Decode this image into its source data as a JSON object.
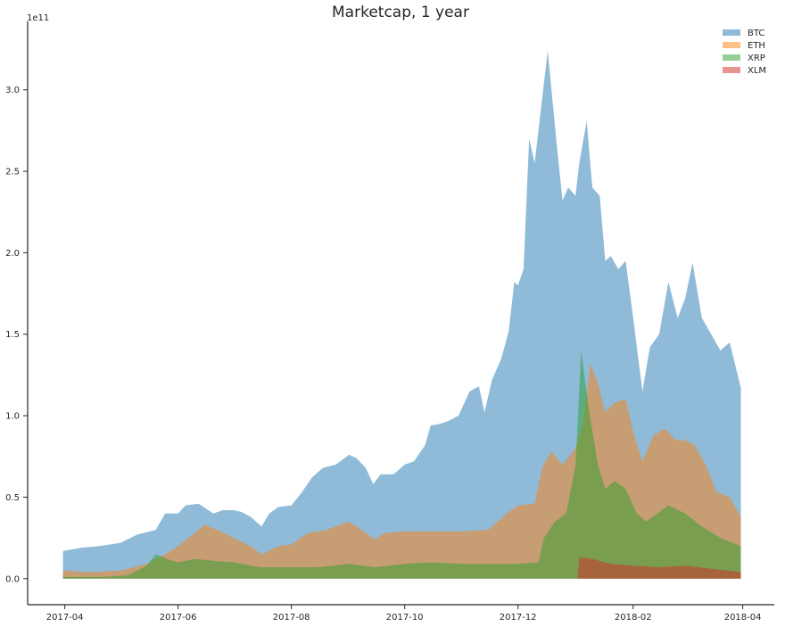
{
  "chart_data": {
    "type": "area",
    "title": "Marketcap, 1 year",
    "xlabel": "",
    "ylabel": "",
    "y_offset_label": "1e11",
    "ylim": [
      -0.16,
      3.42
    ],
    "yticks": [
      0.0,
      0.5,
      1.0,
      1.5,
      2.0,
      2.5,
      3.0
    ],
    "ytick_labels": [
      "0.0",
      "0.5",
      "1.0",
      "1.5",
      "2.0",
      "2.5",
      "3.0"
    ],
    "xlim": [
      "2017-03-12",
      "2018-04-18"
    ],
    "xticks": [
      "2017-04-01",
      "2017-06-01",
      "2017-08-01",
      "2017-10-01",
      "2017-12-01",
      "2018-02-01",
      "2018-04-01"
    ],
    "xtick_labels": [
      "2017-04",
      "2017-06",
      "2017-08",
      "2017-10",
      "2017-12",
      "2018-02",
      "2018-04"
    ],
    "grid": false,
    "stacked": false,
    "legend_position": "top-right",
    "colors": {
      "BTC": "#1f77b4",
      "ETH": "#ff7f0e",
      "XRP": "#2ca02c",
      "XLM": "#d62728"
    },
    "series": [
      {
        "name": "BTC",
        "points": [
          [
            "2017-03-31",
            0.17
          ],
          [
            "2017-04-10",
            0.19
          ],
          [
            "2017-04-20",
            0.2
          ],
          [
            "2017-05-01",
            0.22
          ],
          [
            "2017-05-10",
            0.27
          ],
          [
            "2017-05-20",
            0.3
          ],
          [
            "2017-05-25",
            0.4
          ],
          [
            "2017-06-01",
            0.4
          ],
          [
            "2017-06-05",
            0.45
          ],
          [
            "2017-06-12",
            0.46
          ],
          [
            "2017-06-20",
            0.4
          ],
          [
            "2017-06-25",
            0.42
          ],
          [
            "2017-07-01",
            0.42
          ],
          [
            "2017-07-05",
            0.41
          ],
          [
            "2017-07-10",
            0.38
          ],
          [
            "2017-07-16",
            0.32
          ],
          [
            "2017-07-20",
            0.4
          ],
          [
            "2017-07-25",
            0.44
          ],
          [
            "2017-08-01",
            0.45
          ],
          [
            "2017-08-06",
            0.52
          ],
          [
            "2017-08-12",
            0.62
          ],
          [
            "2017-08-18",
            0.68
          ],
          [
            "2017-08-25",
            0.7
          ],
          [
            "2017-09-01",
            0.76
          ],
          [
            "2017-09-05",
            0.74
          ],
          [
            "2017-09-10",
            0.68
          ],
          [
            "2017-09-14",
            0.58
          ],
          [
            "2017-09-18",
            0.64
          ],
          [
            "2017-09-25",
            0.64
          ],
          [
            "2017-10-01",
            0.7
          ],
          [
            "2017-10-06",
            0.72
          ],
          [
            "2017-10-12",
            0.82
          ],
          [
            "2017-10-15",
            0.94
          ],
          [
            "2017-10-20",
            0.95
          ],
          [
            "2017-10-25",
            0.97
          ],
          [
            "2017-10-30",
            1.0
          ],
          [
            "2017-11-05",
            1.15
          ],
          [
            "2017-11-10",
            1.18
          ],
          [
            "2017-11-13",
            1.02
          ],
          [
            "2017-11-17",
            1.22
          ],
          [
            "2017-11-22",
            1.35
          ],
          [
            "2017-11-26",
            1.52
          ],
          [
            "2017-11-29",
            1.82
          ],
          [
            "2017-12-01",
            1.8
          ],
          [
            "2017-12-04",
            1.9
          ],
          [
            "2017-12-07",
            2.7
          ],
          [
            "2017-12-10",
            2.55
          ],
          [
            "2017-12-13",
            2.85
          ],
          [
            "2017-12-17",
            3.24
          ],
          [
            "2017-12-22",
            2.65
          ],
          [
            "2017-12-25",
            2.32
          ],
          [
            "2017-12-28",
            2.4
          ],
          [
            "2018-01-01",
            2.35
          ],
          [
            "2018-01-03",
            2.55
          ],
          [
            "2018-01-07",
            2.81
          ],
          [
            "2018-01-10",
            2.4
          ],
          [
            "2018-01-14",
            2.35
          ],
          [
            "2018-01-17",
            1.95
          ],
          [
            "2018-01-20",
            1.98
          ],
          [
            "2018-01-24",
            1.9
          ],
          [
            "2018-01-28",
            1.95
          ],
          [
            "2018-02-01",
            1.6
          ],
          [
            "2018-02-06",
            1.15
          ],
          [
            "2018-02-10",
            1.42
          ],
          [
            "2018-02-15",
            1.5
          ],
          [
            "2018-02-20",
            1.82
          ],
          [
            "2018-02-25",
            1.6
          ],
          [
            "2018-03-01",
            1.72
          ],
          [
            "2018-03-05",
            1.94
          ],
          [
            "2018-03-10",
            1.6
          ],
          [
            "2018-03-15",
            1.5
          ],
          [
            "2018-03-20",
            1.4
          ],
          [
            "2018-03-25",
            1.45
          ],
          [
            "2018-03-31",
            1.17
          ]
        ]
      },
      {
        "name": "ETH",
        "points": [
          [
            "2017-03-31",
            0.05
          ],
          [
            "2017-04-15",
            0.04
          ],
          [
            "2017-05-01",
            0.05
          ],
          [
            "2017-05-15",
            0.09
          ],
          [
            "2017-05-25",
            0.15
          ],
          [
            "2017-06-01",
            0.2
          ],
          [
            "2017-06-10",
            0.28
          ],
          [
            "2017-06-15",
            0.33
          ],
          [
            "2017-06-22",
            0.3
          ],
          [
            "2017-07-01",
            0.25
          ],
          [
            "2017-07-10",
            0.2
          ],
          [
            "2017-07-16",
            0.15
          ],
          [
            "2017-07-25",
            0.2
          ],
          [
            "2017-08-01",
            0.21
          ],
          [
            "2017-08-10",
            0.28
          ],
          [
            "2017-08-20",
            0.3
          ],
          [
            "2017-09-01",
            0.35
          ],
          [
            "2017-09-05",
            0.32
          ],
          [
            "2017-09-15",
            0.24
          ],
          [
            "2017-09-20",
            0.28
          ],
          [
            "2017-10-01",
            0.29
          ],
          [
            "2017-10-15",
            0.29
          ],
          [
            "2017-11-01",
            0.29
          ],
          [
            "2017-11-15",
            0.3
          ],
          [
            "2017-11-25",
            0.4
          ],
          [
            "2017-12-01",
            0.45
          ],
          [
            "2017-12-10",
            0.46
          ],
          [
            "2017-12-14",
            0.68
          ],
          [
            "2017-12-19",
            0.78
          ],
          [
            "2017-12-25",
            0.7
          ],
          [
            "2018-01-01",
            0.8
          ],
          [
            "2018-01-05",
            0.95
          ],
          [
            "2018-01-09",
            1.32
          ],
          [
            "2018-01-13",
            1.2
          ],
          [
            "2018-01-17",
            1.02
          ],
          [
            "2018-01-22",
            1.08
          ],
          [
            "2018-01-28",
            1.1
          ],
          [
            "2018-02-01",
            0.9
          ],
          [
            "2018-02-06",
            0.72
          ],
          [
            "2018-02-12",
            0.88
          ],
          [
            "2018-02-18",
            0.92
          ],
          [
            "2018-02-24",
            0.85
          ],
          [
            "2018-03-01",
            0.85
          ],
          [
            "2018-03-06",
            0.82
          ],
          [
            "2018-03-12",
            0.7
          ],
          [
            "2018-03-18",
            0.53
          ],
          [
            "2018-03-25",
            0.5
          ],
          [
            "2018-03-31",
            0.38
          ]
        ]
      },
      {
        "name": "XRP",
        "points": [
          [
            "2017-03-31",
            0.01
          ],
          [
            "2017-04-20",
            0.01
          ],
          [
            "2017-05-05",
            0.02
          ],
          [
            "2017-05-15",
            0.08
          ],
          [
            "2017-05-20",
            0.15
          ],
          [
            "2017-05-26",
            0.12
          ],
          [
            "2017-06-01",
            0.1
          ],
          [
            "2017-06-10",
            0.12
          ],
          [
            "2017-06-20",
            0.11
          ],
          [
            "2017-07-01",
            0.1
          ],
          [
            "2017-07-15",
            0.07
          ],
          [
            "2017-08-01",
            0.07
          ],
          [
            "2017-08-15",
            0.07
          ],
          [
            "2017-09-01",
            0.09
          ],
          [
            "2017-09-15",
            0.07
          ],
          [
            "2017-10-01",
            0.09
          ],
          [
            "2017-10-15",
            0.1
          ],
          [
            "2017-11-01",
            0.09
          ],
          [
            "2017-11-15",
            0.09
          ],
          [
            "2017-12-01",
            0.09
          ],
          [
            "2017-12-12",
            0.1
          ],
          [
            "2017-12-15",
            0.25
          ],
          [
            "2017-12-21",
            0.35
          ],
          [
            "2017-12-27",
            0.4
          ],
          [
            "2018-01-01",
            0.7
          ],
          [
            "2018-01-04",
            1.4
          ],
          [
            "2018-01-08",
            1.05
          ],
          [
            "2018-01-13",
            0.7
          ],
          [
            "2018-01-17",
            0.55
          ],
          [
            "2018-01-22",
            0.6
          ],
          [
            "2018-01-28",
            0.55
          ],
          [
            "2018-02-03",
            0.4
          ],
          [
            "2018-02-08",
            0.35
          ],
          [
            "2018-02-14",
            0.4
          ],
          [
            "2018-02-20",
            0.45
          ],
          [
            "2018-03-01",
            0.4
          ],
          [
            "2018-03-10",
            0.32
          ],
          [
            "2018-03-20",
            0.25
          ],
          [
            "2018-03-31",
            0.2
          ]
        ]
      },
      {
        "name": "XLM",
        "points": [
          [
            "2017-03-31",
            0.0
          ],
          [
            "2017-12-20",
            0.0
          ],
          [
            "2018-01-02",
            0.0
          ],
          [
            "2018-01-03",
            0.13
          ],
          [
            "2018-01-10",
            0.12
          ],
          [
            "2018-01-20",
            0.09
          ],
          [
            "2018-02-01",
            0.08
          ],
          [
            "2018-02-15",
            0.07
          ],
          [
            "2018-03-01",
            0.08
          ],
          [
            "2018-03-15",
            0.06
          ],
          [
            "2018-03-31",
            0.04
          ]
        ]
      }
    ]
  }
}
